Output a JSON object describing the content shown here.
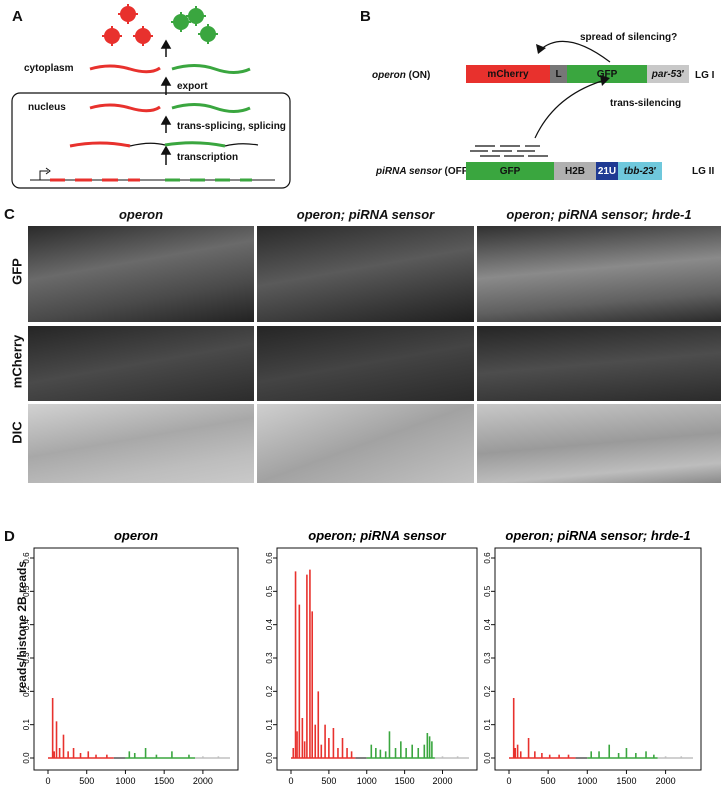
{
  "panel_letters": {
    "a": "A",
    "b": "B",
    "c": "C",
    "d": "D"
  },
  "panel_a": {
    "cytoplasm_label": "cytoplasm",
    "nucleus_label": "nucleus",
    "export_label": "export",
    "splicing_label": "trans-splicing, splicing",
    "transcription_label": "transcription"
  },
  "panel_b": {
    "operon_label": "operon",
    "operon_state": " (ON)",
    "sensor_label": "piRNA sensor",
    "sensor_state": " (OFF)",
    "spread_label": "spread of silencing?",
    "trans_label": "trans-silencing",
    "lg1": "LG I",
    "lg2": "LG II",
    "operon_boxes": {
      "mcherry": "mCherry",
      "l": "L",
      "gfp": "GFP",
      "par5": "par-5",
      "par5_suffix": " 3′"
    },
    "sensor_boxes": {
      "gfp": "GFP",
      "h2b": "H2B",
      "u21": "21U",
      "tbb2": "tbb-2",
      "tbb2_suffix": " 3′"
    }
  },
  "panel_c": {
    "columns": [
      "operon",
      "operon; piRNA sensor",
      "operon; piRNA sensor; hrde-1"
    ],
    "rows": [
      "GFP",
      "mCherry",
      "DIC"
    ]
  },
  "panel_d": {
    "ylabel": "reads/histone 2B reads",
    "bar_labels": {
      "mcherry": "mCherry",
      "l": "L",
      "gfp": "GFP",
      "par5": "par-5",
      "par5_suffix": " 3′"
    },
    "colors": {
      "mcherry": "#e8312d",
      "l": "#555555",
      "gfp": "#3aa63f",
      "par5": "#c0c0c0"
    }
  },
  "chart_data": [
    {
      "type": "bar",
      "title": "operon",
      "ylabel": "reads/histone 2B reads",
      "xlim": [
        0,
        2350
      ],
      "ylim": [
        0,
        0.6
      ],
      "xticks": [
        0,
        500,
        1000,
        1500,
        2000
      ],
      "yticks": [
        0.0,
        0.1,
        0.2,
        0.3,
        0.4,
        0.5,
        0.6
      ],
      "regions": [
        {
          "name": "mCherry",
          "start": 0,
          "end": 850,
          "color": "#e8312d"
        },
        {
          "name": "L",
          "start": 850,
          "end": 1000,
          "color": "#555555"
        },
        {
          "name": "GFP",
          "start": 1000,
          "end": 1900,
          "color": "#3aa63f"
        },
        {
          "name": "par-5 3′",
          "start": 1900,
          "end": 2350,
          "color": "#c0c0c0"
        }
      ],
      "bars": [
        {
          "x": 60,
          "y": 0.18
        },
        {
          "x": 80,
          "y": 0.02
        },
        {
          "x": 110,
          "y": 0.11
        },
        {
          "x": 150,
          "y": 0.03
        },
        {
          "x": 200,
          "y": 0.07
        },
        {
          "x": 260,
          "y": 0.02
        },
        {
          "x": 330,
          "y": 0.03
        },
        {
          "x": 420,
          "y": 0.015
        },
        {
          "x": 520,
          "y": 0.02
        },
        {
          "x": 620,
          "y": 0.01
        },
        {
          "x": 760,
          "y": 0.01
        },
        {
          "x": 1050,
          "y": 0.02
        },
        {
          "x": 1120,
          "y": 0.015
        },
        {
          "x": 1260,
          "y": 0.03
        },
        {
          "x": 1400,
          "y": 0.01
        },
        {
          "x": 1600,
          "y": 0.02
        },
        {
          "x": 1820,
          "y": 0.01
        },
        {
          "x": 2000,
          "y": 0.005
        },
        {
          "x": 2200,
          "y": 0.005
        }
      ]
    },
    {
      "type": "bar",
      "title": "operon; piRNA sensor",
      "xlim": [
        0,
        2350
      ],
      "ylim": [
        0,
        0.6
      ],
      "xticks": [
        0,
        500,
        1000,
        1500,
        2000
      ],
      "yticks": [
        0.0,
        0.1,
        0.2,
        0.3,
        0.4,
        0.5,
        0.6
      ],
      "regions": [
        {
          "name": "mCherry",
          "start": 0,
          "end": 850,
          "color": "#e8312d"
        },
        {
          "name": "L",
          "start": 850,
          "end": 1000,
          "color": "#555555"
        },
        {
          "name": "GFP",
          "start": 1000,
          "end": 1900,
          "color": "#3aa63f"
        },
        {
          "name": "par-5 3′",
          "start": 1900,
          "end": 2350,
          "color": "#c0c0c0"
        }
      ],
      "bars": [
        {
          "x": 30,
          "y": 0.03
        },
        {
          "x": 60,
          "y": 0.56
        },
        {
          "x": 80,
          "y": 0.08
        },
        {
          "x": 110,
          "y": 0.46
        },
        {
          "x": 150,
          "y": 0.12
        },
        {
          "x": 180,
          "y": 0.05
        },
        {
          "x": 210,
          "y": 0.55
        },
        {
          "x": 250,
          "y": 0.565
        },
        {
          "x": 280,
          "y": 0.44
        },
        {
          "x": 320,
          "y": 0.1
        },
        {
          "x": 360,
          "y": 0.2
        },
        {
          "x": 400,
          "y": 0.04
        },
        {
          "x": 450,
          "y": 0.1
        },
        {
          "x": 500,
          "y": 0.06
        },
        {
          "x": 560,
          "y": 0.09
        },
        {
          "x": 620,
          "y": 0.03
        },
        {
          "x": 680,
          "y": 0.06
        },
        {
          "x": 740,
          "y": 0.03
        },
        {
          "x": 800,
          "y": 0.02
        },
        {
          "x": 1060,
          "y": 0.04
        },
        {
          "x": 1120,
          "y": 0.03
        },
        {
          "x": 1180,
          "y": 0.025
        },
        {
          "x": 1250,
          "y": 0.02
        },
        {
          "x": 1300,
          "y": 0.08
        },
        {
          "x": 1380,
          "y": 0.03
        },
        {
          "x": 1450,
          "y": 0.05
        },
        {
          "x": 1520,
          "y": 0.03
        },
        {
          "x": 1600,
          "y": 0.04
        },
        {
          "x": 1680,
          "y": 0.03
        },
        {
          "x": 1760,
          "y": 0.04
        },
        {
          "x": 1800,
          "y": 0.075
        },
        {
          "x": 1830,
          "y": 0.065
        },
        {
          "x": 1860,
          "y": 0.05
        },
        {
          "x": 2000,
          "y": 0.005
        },
        {
          "x": 2200,
          "y": 0.005
        }
      ]
    },
    {
      "type": "bar",
      "title": "operon; piRNA sensor; hrde-1",
      "xlim": [
        0,
        2350
      ],
      "ylim": [
        0,
        0.6
      ],
      "xticks": [
        0,
        500,
        1000,
        1500,
        2000
      ],
      "yticks": [
        0.0,
        0.1,
        0.2,
        0.3,
        0.4,
        0.5,
        0.6
      ],
      "regions": [
        {
          "name": "mCherry",
          "start": 0,
          "end": 850,
          "color": "#e8312d"
        },
        {
          "name": "L",
          "start": 850,
          "end": 1000,
          "color": "#555555"
        },
        {
          "name": "GFP",
          "start": 1000,
          "end": 1900,
          "color": "#3aa63f"
        },
        {
          "name": "par-5 3′",
          "start": 1900,
          "end": 2350,
          "color": "#c0c0c0"
        }
      ],
      "bars": [
        {
          "x": 60,
          "y": 0.18
        },
        {
          "x": 80,
          "y": 0.03
        },
        {
          "x": 110,
          "y": 0.04
        },
        {
          "x": 150,
          "y": 0.02
        },
        {
          "x": 250,
          "y": 0.06
        },
        {
          "x": 330,
          "y": 0.02
        },
        {
          "x": 420,
          "y": 0.015
        },
        {
          "x": 520,
          "y": 0.01
        },
        {
          "x": 640,
          "y": 0.01
        },
        {
          "x": 760,
          "y": 0.01
        },
        {
          "x": 1050,
          "y": 0.02
        },
        {
          "x": 1150,
          "y": 0.02
        },
        {
          "x": 1280,
          "y": 0.04
        },
        {
          "x": 1400,
          "y": 0.015
        },
        {
          "x": 1500,
          "y": 0.03
        },
        {
          "x": 1620,
          "y": 0.015
        },
        {
          "x": 1750,
          "y": 0.02
        },
        {
          "x": 1850,
          "y": 0.01
        },
        {
          "x": 2000,
          "y": 0.005
        },
        {
          "x": 2200,
          "y": 0.005
        }
      ]
    }
  ]
}
